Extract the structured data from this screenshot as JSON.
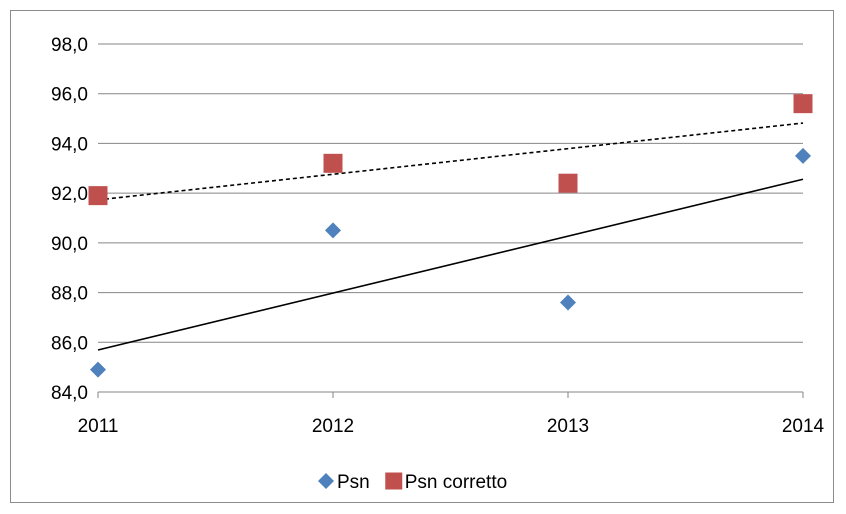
{
  "chart_data": {
    "type": "scatter",
    "x": [
      "2011",
      "2012",
      "2013",
      "2014"
    ],
    "ylim": [
      84.0,
      98.0
    ],
    "yticks": [
      "84,0",
      "86,0",
      "88,0",
      "90,0",
      "92,0",
      "94,0",
      "96,0",
      "98,0"
    ],
    "ytick_values": [
      84,
      86,
      88,
      90,
      92,
      94,
      96,
      98
    ],
    "grid": true,
    "legend_position": "bottom",
    "series": [
      {
        "name": "Psn",
        "marker": "diamond",
        "color": "#4F81BD",
        "values": [
          84.9,
          90.5,
          87.6,
          93.5
        ],
        "trendline": {
          "type": "linear",
          "style": "solid",
          "color": "#000000"
        }
      },
      {
        "name": "Psn corretto",
        "marker": "square",
        "color": "#C0504D",
        "values": [
          91.9,
          93.2,
          92.4,
          95.6
        ],
        "trendline": {
          "type": "linear",
          "style": "dashed",
          "color": "#000000"
        }
      }
    ]
  }
}
